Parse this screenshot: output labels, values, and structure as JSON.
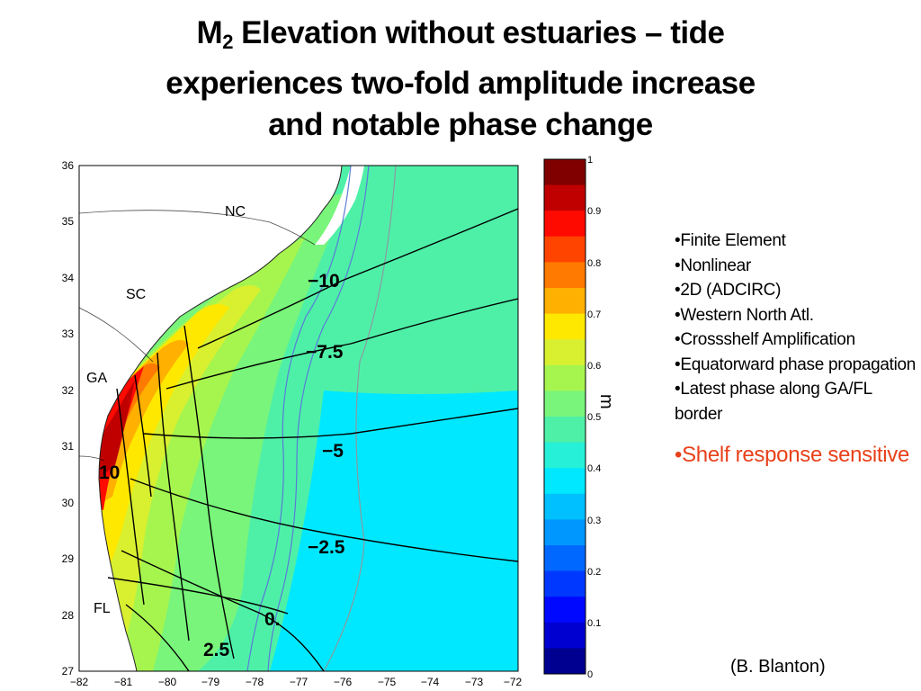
{
  "title": {
    "prefix": "M",
    "subscript": "2",
    "line1_rest": " Elevation without estuaries – tide",
    "line2": "experiences two-fold amplitude increase",
    "line3": "and notable phase change"
  },
  "map": {
    "x_ticks": [
      "−82",
      "−81",
      "−80",
      "−79",
      "−78",
      "−77",
      "−76",
      "−75",
      "−74",
      "−73",
      "−72"
    ],
    "y_ticks": [
      "36",
      "35",
      "34",
      "33",
      "32",
      "31",
      "30",
      "29",
      "28",
      "27"
    ],
    "state_labels": {
      "nc": "NC",
      "sc": "SC",
      "ga": "GA",
      "fl": "FL"
    },
    "contour_labels": {
      "c1": "−10",
      "c2": "−7.5",
      "c3": "−5",
      "c4": "−2.5",
      "c5": "0.",
      "c6": "2.5",
      "c7": "10"
    }
  },
  "colorbar": {
    "unit": "m",
    "ticks": [
      "1",
      "0.9",
      "0.8",
      "0.7",
      "0.6",
      "0.5",
      "0.4",
      "0.3",
      "0.2",
      "0.1",
      "0"
    ],
    "colors": [
      "#800000",
      "#c00000",
      "#ff0a00",
      "#ff4400",
      "#ff7a00",
      "#ffb000",
      "#ffe800",
      "#d8f030",
      "#a6f54e",
      "#78f57a",
      "#4ef0a8",
      "#26f0d8",
      "#00e8ff",
      "#00c0ff",
      "#0098ff",
      "#0068ff",
      "#0038ff",
      "#0008ff",
      "#0000d0",
      "#000090"
    ]
  },
  "bullets": [
    "•Finite Element",
    "•Nonlinear",
    "•2D (ADCIRC)",
    "•Western North Atl.",
    "•Crossshelf Amplification",
    "•Equatorward phase propagation",
    "•Latest phase along GA/FL border"
  ],
  "highlight_bullet": "•Shelf response sensitive",
  "credit": "(B. Blanton)"
}
